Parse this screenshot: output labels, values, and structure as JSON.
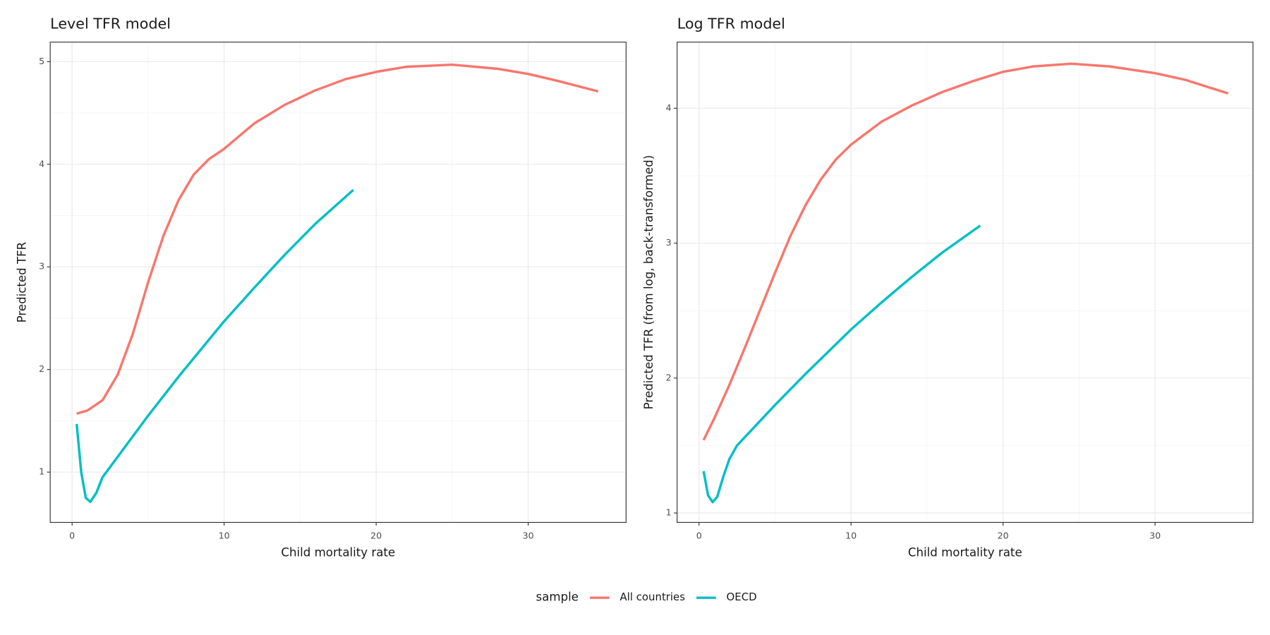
{
  "legend": {
    "title": "sample"
  },
  "chart_data": [
    {
      "type": "line",
      "title": "Level TFR model",
      "x_label": "Child mortality rate",
      "y_label": "Predicted TFR",
      "xlim": [
        -1.44,
        36.44
      ],
      "ylim": [
        0.51,
        5.19
      ],
      "xticks": [
        0,
        10,
        20,
        30
      ],
      "yticks": [
        1,
        2,
        3,
        4,
        5
      ],
      "grid": true,
      "series": [
        {
          "name": "All countries",
          "color": "#f8766d",
          "x": [
            0.3,
            1,
            2,
            3,
            4,
            5,
            6,
            7,
            8,
            9,
            10,
            12,
            14,
            16,
            18,
            20,
            22,
            25,
            28,
            30,
            32,
            34.6
          ],
          "values": [
            1.57,
            1.6,
            1.7,
            1.95,
            2.35,
            2.85,
            3.3,
            3.65,
            3.9,
            4.05,
            4.15,
            4.4,
            4.58,
            4.72,
            4.83,
            4.9,
            4.95,
            4.97,
            4.93,
            4.88,
            4.81,
            4.71
          ]
        },
        {
          "name": "OECD",
          "color": "#00bfc4",
          "x": [
            0.3,
            0.6,
            0.9,
            1.2,
            1.6,
            2,
            3,
            5,
            7,
            10,
            12,
            14,
            16,
            18.5
          ],
          "values": [
            1.47,
            1.0,
            0.75,
            0.71,
            0.8,
            0.95,
            1.15,
            1.55,
            1.93,
            2.47,
            2.8,
            3.12,
            3.42,
            3.75
          ]
        }
      ]
    },
    {
      "type": "line",
      "title": "Log TFR model",
      "x_label": "Child mortality rate",
      "y_label": "Predicted TFR (from log, back-transformed)",
      "xlim": [
        -1.44,
        36.44
      ],
      "ylim": [
        0.93,
        4.49
      ],
      "xticks": [
        0,
        10,
        20,
        30
      ],
      "yticks": [
        1,
        2,
        3,
        4
      ],
      "grid": true,
      "series": [
        {
          "name": "All countries",
          "color": "#f8766d",
          "x": [
            0.3,
            1,
            2,
            3,
            4,
            5,
            6,
            7,
            8,
            9,
            10,
            12,
            14,
            16,
            18,
            20,
            22,
            24.5,
            27,
            30,
            32,
            34.8
          ],
          "values": [
            1.54,
            1.7,
            1.95,
            2.22,
            2.5,
            2.78,
            3.05,
            3.28,
            3.47,
            3.62,
            3.73,
            3.9,
            4.02,
            4.12,
            4.2,
            4.27,
            4.31,
            4.33,
            4.31,
            4.26,
            4.21,
            4.11
          ]
        },
        {
          "name": "OECD",
          "color": "#00bfc4",
          "x": [
            0.3,
            0.6,
            0.9,
            1.2,
            1.6,
            2,
            2.5,
            3,
            5,
            7,
            10,
            12,
            14,
            16,
            18.5
          ],
          "values": [
            1.31,
            1.13,
            1.08,
            1.12,
            1.27,
            1.4,
            1.5,
            1.56,
            1.8,
            2.03,
            2.36,
            2.56,
            2.75,
            2.93,
            3.13
          ]
        }
      ]
    }
  ]
}
